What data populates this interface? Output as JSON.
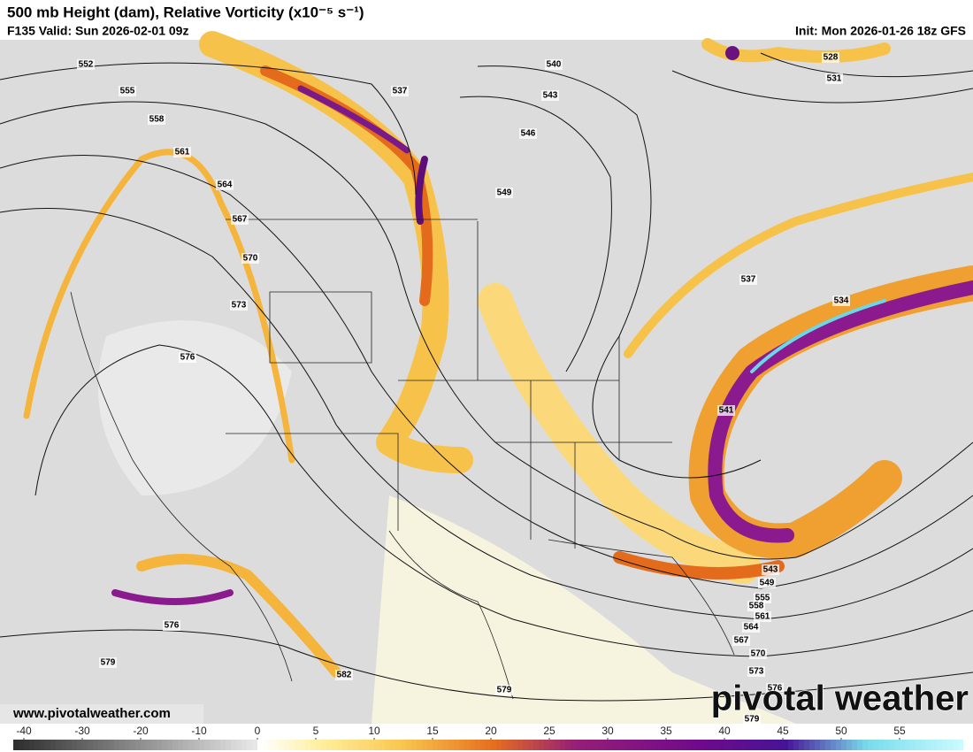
{
  "header": {
    "title": "500 mb Height (dam), Relative Vorticity (x10⁻⁵ s⁻¹)",
    "valid": "F135 Valid: Sun 2026-02-01 09z",
    "init": "Init: Mon 2026-01-26 18z GFS"
  },
  "contour_labels": [
    "552",
    "555",
    "558",
    "561",
    "564",
    "567",
    "570",
    "573",
    "576",
    "537",
    "540",
    "543",
    "546",
    "549",
    "537",
    "534",
    "528",
    "531",
    "541",
    "543",
    "549",
    "555",
    "558",
    "561",
    "564",
    "567",
    "570",
    "573",
    "576",
    "579",
    "576",
    "579",
    "582",
    "579"
  ],
  "colorbar_ticks": [
    -40,
    -30,
    -20,
    -10,
    0,
    5,
    10,
    15,
    20,
    25,
    30,
    35,
    40,
    45,
    50,
    55
  ],
  "website": "www.pivotalweather.com",
  "watermark": "pivotal weather"
}
